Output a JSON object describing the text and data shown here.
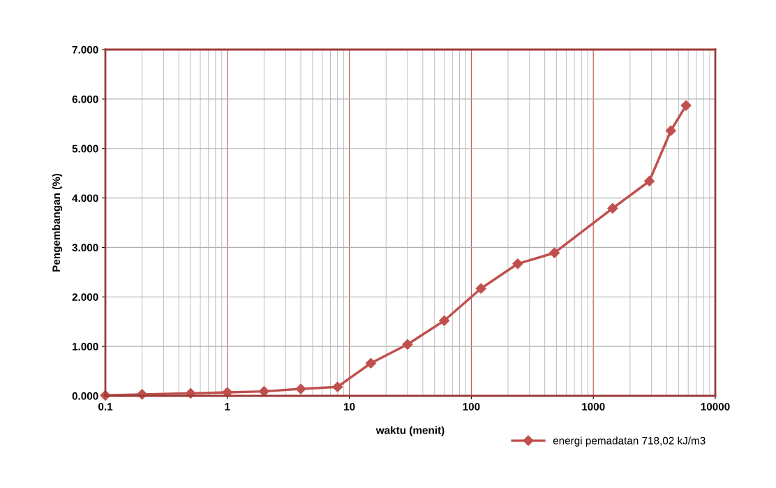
{
  "chart_data": {
    "type": "line",
    "xlabel": "waktu (menit)",
    "ylabel": "Pengembangan (%)",
    "log": "x",
    "x": [
      0.1,
      0.2,
      0.5,
      1,
      2,
      4,
      8,
      15,
      30,
      60,
      120,
      240,
      480,
      1440,
      2880,
      4320,
      5760
    ],
    "series": [
      {
        "name": "energi pemadatan 718,02 kJ/m3",
        "color": "#c0504d",
        "values": [
          0.01,
          0.03,
          0.05,
          0.07,
          0.09,
          0.14,
          0.18,
          0.66,
          1.04,
          1.52,
          2.17,
          2.67,
          2.89,
          3.79,
          4.34,
          5.36,
          5.87
        ]
      }
    ],
    "xlim": [
      0.1,
      10000
    ],
    "xticks": [
      0.1,
      1,
      10,
      100,
      1000,
      10000
    ],
    "ylim": [
      0,
      7
    ],
    "yticks": [
      {
        "value": 0,
        "label": "0.000"
      },
      {
        "value": 1,
        "label": "1.000"
      },
      {
        "value": 2,
        "label": "2.000"
      },
      {
        "value": 3,
        "label": "3.000"
      },
      {
        "value": 4,
        "label": "4.000"
      },
      {
        "value": 5,
        "label": "5.000"
      },
      {
        "value": 6,
        "label": "6.000"
      },
      {
        "value": 7,
        "label": "7.000"
      }
    ],
    "grid": true,
    "legend": "bottom right",
    "marker": "diamond",
    "line_style": "solid"
  }
}
